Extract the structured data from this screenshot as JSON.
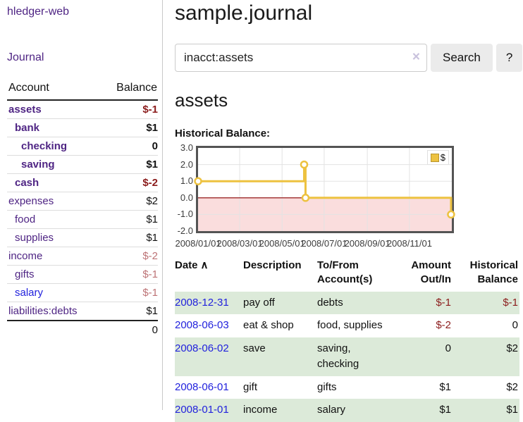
{
  "sidebar": {
    "app_title": "hledger-web",
    "journal_link": "Journal",
    "table": {
      "account_header": "Account",
      "balance_header": "Balance",
      "accounts": [
        {
          "name": "assets",
          "level": 0,
          "bold": true,
          "balance": "$-1",
          "negative": true
        },
        {
          "name": "bank",
          "level": 1,
          "bold": true,
          "balance": "$1",
          "negative": false
        },
        {
          "name": "checking",
          "level": 2,
          "bold": true,
          "balance": "0",
          "negative": false
        },
        {
          "name": "saving",
          "level": 2,
          "bold": true,
          "balance": "$1",
          "negative": false
        },
        {
          "name": "cash",
          "level": 1,
          "bold": true,
          "balance": "$-2",
          "negative": true
        },
        {
          "name": "expenses",
          "level": 0,
          "bold": false,
          "balance": "$2",
          "negative": false
        },
        {
          "name": "food",
          "level": 1,
          "bold": false,
          "balance": "$1",
          "negative": false
        },
        {
          "name": "supplies",
          "level": 1,
          "bold": false,
          "balance": "$1",
          "negative": false
        },
        {
          "name": "income",
          "level": 0,
          "bold": false,
          "balance": "$-2",
          "negative": true
        },
        {
          "name": "gifts",
          "level": 1,
          "bold": false,
          "balance": "$-1",
          "negative": true
        },
        {
          "name": "salary",
          "level": 1,
          "bold": false,
          "balance": "$-1",
          "negative": true,
          "unvisited": true
        },
        {
          "name": "liabilities:debts",
          "level": 0,
          "bold": false,
          "balance": "$1",
          "negative": false
        }
      ],
      "total": "0"
    }
  },
  "header": {
    "title": "sample.journal"
  },
  "search": {
    "value": "inacct:assets",
    "clear_icon": "×",
    "button_label": "Search",
    "help_label": "?"
  },
  "main": {
    "account_heading": "assets",
    "chart_label": "Historical Balance:"
  },
  "chart_data": {
    "type": "line",
    "title": "Historical Balance:",
    "step": true,
    "series": [
      {
        "name": "$",
        "color": "#edc240",
        "points": [
          [
            "2008-01-01",
            1
          ],
          [
            "2008-06-01",
            2
          ],
          [
            "2008-06-03",
            0
          ],
          [
            "2008-12-31",
            -1
          ]
        ]
      }
    ],
    "x_range": [
      "2008-01-01",
      "2009-01-01"
    ],
    "ylim": [
      -2,
      3
    ],
    "y_ticks": [
      "3.0",
      "2.0",
      "1.0",
      "0.0",
      "-1.0",
      "-2.0"
    ],
    "x_ticks": [
      {
        "label": "2008/01/01",
        "f": 0.0
      },
      {
        "label": "2008/03/01",
        "f": 0.164
      },
      {
        "label": "2008/05/01",
        "f": 0.331
      },
      {
        "label": "2008/07/01",
        "f": 0.497
      },
      {
        "label": "2008/09/01",
        "f": 0.667
      },
      {
        "label": "2008/11/01",
        "f": 0.833
      }
    ],
    "legend": {
      "label": "$",
      "position": "top-right"
    },
    "grid": true,
    "grid_color": "#e3e3e3",
    "negative_fill": "#fadddd",
    "zero_line_color": "#8b0000",
    "line_points_f": [
      [
        0,
        1
      ],
      [
        0.418,
        1
      ],
      [
        0.418,
        2
      ],
      [
        0.4235,
        2
      ],
      [
        0.4235,
        0
      ],
      [
        0.997,
        0
      ],
      [
        0.997,
        -1
      ]
    ],
    "marker_points_f": [
      [
        0,
        1
      ],
      [
        0.418,
        2
      ],
      [
        0.4235,
        0
      ],
      [
        0.997,
        -1
      ]
    ]
  },
  "register": {
    "header": {
      "date": "Date",
      "sort_icon": "∧",
      "description": "Description",
      "accounts": "To/From Account(s)",
      "amount": "Amount Out/In",
      "balance": "Historical Balance"
    },
    "rows": [
      {
        "date": "2008-12-31",
        "description": "pay off",
        "accounts": "debts",
        "amount": "$-1",
        "amount_neg": true,
        "balance": "$-1",
        "balance_neg": true
      },
      {
        "date": "2008-06-03",
        "description": "eat & shop",
        "accounts": "food, supplies",
        "amount": "$-2",
        "amount_neg": true,
        "balance": "0",
        "balance_neg": false
      },
      {
        "date": "2008-06-02",
        "description": "save",
        "accounts": "saving, checking",
        "amount": "0",
        "amount_neg": false,
        "balance": "$2",
        "balance_neg": false
      },
      {
        "date": "2008-06-01",
        "description": "gift",
        "accounts": "gifts",
        "amount": "$1",
        "amount_neg": false,
        "balance": "$2",
        "balance_neg": false
      },
      {
        "date": "2008-01-01",
        "description": "income",
        "accounts": "salary",
        "amount": "$1",
        "amount_neg": false,
        "balance": "$1",
        "balance_neg": false
      }
    ]
  },
  "colors": {
    "accent_purple": "#4f2584",
    "link_blue": "#2222dd",
    "negative_dark": "#8b1c1c",
    "negative_light": "#bd7376",
    "row_stripe_green": "#dcead9",
    "chart_gold": "#edc240",
    "chart_negative_region": "#fadddd",
    "chart_zero_line": "#8b0000"
  }
}
